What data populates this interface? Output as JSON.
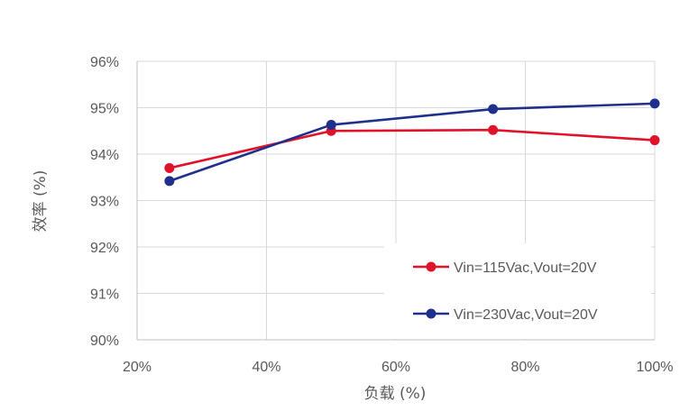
{
  "chart_data": {
    "type": "line",
    "xlabel": "负载 (%)",
    "ylabel": "效率 (%)",
    "x_ticks": [
      "20%",
      "40%",
      "60%",
      "80%",
      "100%"
    ],
    "y_ticks": [
      "90%",
      "91%",
      "92%",
      "93%",
      "94%",
      "95%",
      "96%"
    ],
    "xlim": [
      20,
      100
    ],
    "ylim": [
      90,
      96
    ],
    "grid": true,
    "legend_position": "bottom-right",
    "series": [
      {
        "name": "Vin=115Vac,Vout=20V",
        "color": "#e0122a",
        "x": [
          25,
          50,
          75,
          100
        ],
        "y": [
          93.7,
          94.5,
          94.52,
          94.3
        ]
      },
      {
        "name": "Vin=230Vac,Vout=20V",
        "color": "#1f2f8c",
        "x": [
          25,
          50,
          75,
          100
        ],
        "y": [
          93.42,
          94.63,
          94.97,
          95.09
        ]
      }
    ]
  }
}
